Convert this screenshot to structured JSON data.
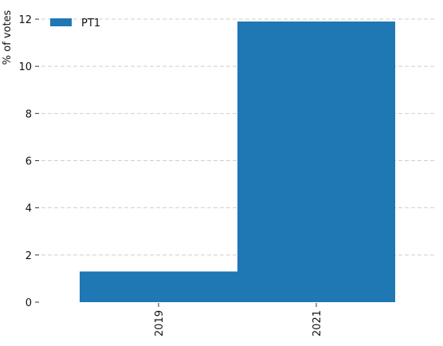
{
  "chart_data": {
    "type": "bar",
    "title": "",
    "xlabel": "",
    "ylabel": "% of votes",
    "categories": [
      "2019",
      "2021"
    ],
    "series": [
      {
        "name": "PT1",
        "values": [
          1.3,
          11.9
        ],
        "color": "#1f77b4"
      }
    ],
    "ylim": [
      0,
      12
    ],
    "yticks": [
      "0",
      "2",
      "4",
      "6",
      "8",
      "10",
      "12"
    ],
    "grid": true,
    "legend_position": "top-left",
    "x_tick_rotation": "vertical"
  }
}
